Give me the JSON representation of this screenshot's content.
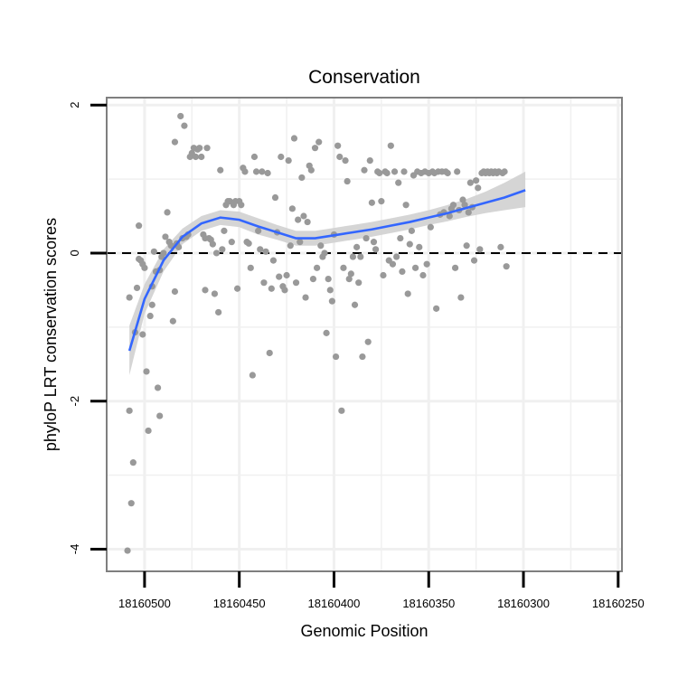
{
  "chart_data": {
    "type": "scatter",
    "title": "Conservation",
    "xlabel": "Genomic Position",
    "ylabel": "phyloP LRT conservation scores",
    "x_reversed": true,
    "xlim": [
      18160520,
      18160248
    ],
    "ylim": [
      -4.3,
      2.1
    ],
    "x_ticks": [
      18160500,
      18160450,
      18160400,
      18160350,
      18160300,
      18160250
    ],
    "x_tick_labels": [
      "18160500",
      "18160450",
      "18160400",
      "18160350",
      "18160300",
      "18160250"
    ],
    "y_ticks": [
      -4,
      -2,
      0,
      2
    ],
    "y_tick_labels": [
      "-4",
      "-2",
      "0",
      "2"
    ],
    "grid": true,
    "reference_line": {
      "y": 0,
      "style": "dashed"
    },
    "colors": {
      "points": "#999999",
      "smooth": "#3366ff",
      "band": "#d0d0d0",
      "frame": "#7f7f7f",
      "grid": "#f0f0f0"
    },
    "series": [
      {
        "name": "scores",
        "points": [
          [
            18160509,
            -4.02
          ],
          [
            18160507,
            -3.38
          ],
          [
            18160506,
            -2.83
          ],
          [
            18160508,
            -2.13
          ],
          [
            18160508,
            -0.6
          ],
          [
            18160505,
            -1.07
          ],
          [
            18160504,
            -0.47
          ],
          [
            18160503,
            0.37
          ],
          [
            18160503,
            -0.08
          ],
          [
            18160502,
            -0.1
          ],
          [
            18160501,
            -1.1
          ],
          [
            18160501,
            -0.15
          ],
          [
            18160500,
            -0.2
          ],
          [
            18160499,
            -1.6
          ],
          [
            18160498,
            -2.4
          ],
          [
            18160497,
            -0.85
          ],
          [
            18160496,
            -0.7
          ],
          [
            18160496,
            -0.45
          ],
          [
            18160495,
            0.02
          ],
          [
            18160494,
            -0.25
          ],
          [
            18160493,
            -1.82
          ],
          [
            18160492,
            -2.2
          ],
          [
            18160492,
            -0.23
          ],
          [
            18160491,
            -0.05
          ],
          [
            18160490,
            0.0
          ],
          [
            18160489,
            0.22
          ],
          [
            18160488,
            0.55
          ],
          [
            18160487,
            0.15
          ],
          [
            18160486,
            0.1
          ],
          [
            18160485,
            -0.92
          ],
          [
            18160484,
            -0.52
          ],
          [
            18160484,
            1.5
          ],
          [
            18160483,
            0.13
          ],
          [
            18160482,
            0.08
          ],
          [
            18160481,
            1.85
          ],
          [
            18160480,
            0.2
          ],
          [
            18160479,
            1.72
          ],
          [
            18160478,
            0.22
          ],
          [
            18160477,
            0.25
          ],
          [
            18160476,
            1.3
          ],
          [
            18160475,
            1.35
          ],
          [
            18160474,
            1.42
          ],
          [
            18160473,
            1.3
          ],
          [
            18160472,
            1.4
          ],
          [
            18160471,
            1.42
          ],
          [
            18160470,
            1.3
          ],
          [
            18160469,
            0.25
          ],
          [
            18160468,
            0.2
          ],
          [
            18160468,
            -0.5
          ],
          [
            18160467,
            1.42
          ],
          [
            18160466,
            0.2
          ],
          [
            18160465,
            0.18
          ],
          [
            18160464,
            0.12
          ],
          [
            18160463,
            -0.55
          ],
          [
            18160462,
            0.0
          ],
          [
            18160461,
            -0.8
          ],
          [
            18160460,
            1.12
          ],
          [
            18160459,
            0.05
          ],
          [
            18160458,
            0.3
          ],
          [
            18160457,
            0.65
          ],
          [
            18160456,
            0.7
          ],
          [
            18160455,
            0.7
          ],
          [
            18160454,
            0.15
          ],
          [
            18160453,
            0.65
          ],
          [
            18160452,
            0.7
          ],
          [
            18160451,
            -0.48
          ],
          [
            18160450,
            0.7
          ],
          [
            18160449,
            0.65
          ],
          [
            18160448,
            1.15
          ],
          [
            18160447,
            1.1
          ],
          [
            18160446,
            0.15
          ],
          [
            18160445,
            0.13
          ],
          [
            18160444,
            -0.2
          ],
          [
            18160443,
            -1.65
          ],
          [
            18160442,
            1.3
          ],
          [
            18160441,
            1.1
          ],
          [
            18160440,
            0.3
          ],
          [
            18160439,
            0.05
          ],
          [
            18160438,
            1.1
          ],
          [
            18160437,
            -0.4
          ],
          [
            18160436,
            0.02
          ],
          [
            18160435,
            1.08
          ],
          [
            18160434,
            -1.35
          ],
          [
            18160433,
            -0.48
          ],
          [
            18160432,
            -0.1
          ],
          [
            18160431,
            0.75
          ],
          [
            18160430,
            0.28
          ],
          [
            18160429,
            -0.32
          ],
          [
            18160428,
            1.3
          ],
          [
            18160427,
            -0.45
          ],
          [
            18160426,
            -0.5
          ],
          [
            18160425,
            -0.3
          ],
          [
            18160424,
            1.25
          ],
          [
            18160423,
            0.1
          ],
          [
            18160422,
            0.6
          ],
          [
            18160421,
            1.55
          ],
          [
            18160420,
            -0.4
          ],
          [
            18160419,
            0.45
          ],
          [
            18160418,
            0.15
          ],
          [
            18160417,
            1.02
          ],
          [
            18160416,
            0.5
          ],
          [
            18160415,
            -0.6
          ],
          [
            18160414,
            0.42
          ],
          [
            18160413,
            1.18
          ],
          [
            18160412,
            1.12
          ],
          [
            18160411,
            -0.35
          ],
          [
            18160410,
            1.42
          ],
          [
            18160409,
            -0.2
          ],
          [
            18160408,
            1.5
          ],
          [
            18160407,
            0.1
          ],
          [
            18160406,
            -0.05
          ],
          [
            18160405,
            0.0
          ],
          [
            18160404,
            -1.08
          ],
          [
            18160403,
            -0.35
          ],
          [
            18160402,
            -0.5
          ],
          [
            18160401,
            -0.65
          ],
          [
            18160400,
            0.25
          ],
          [
            18160399,
            -1.4
          ],
          [
            18160398,
            1.45
          ],
          [
            18160397,
            1.3
          ],
          [
            18160396,
            -2.13
          ],
          [
            18160395,
            -0.2
          ],
          [
            18160394,
            1.25
          ],
          [
            18160393,
            0.97
          ],
          [
            18160392,
            -0.35
          ],
          [
            18160391,
            -0.28
          ],
          [
            18160390,
            -0.05
          ],
          [
            18160389,
            -0.7
          ],
          [
            18160388,
            0.08
          ],
          [
            18160387,
            -0.4
          ],
          [
            18160386,
            -0.05
          ],
          [
            18160385,
            -1.4
          ],
          [
            18160384,
            1.12
          ],
          [
            18160383,
            0.2
          ],
          [
            18160382,
            -1.2
          ],
          [
            18160381,
            1.25
          ],
          [
            18160380,
            0.68
          ],
          [
            18160379,
            0.15
          ],
          [
            18160378,
            0.05
          ],
          [
            18160377,
            1.1
          ],
          [
            18160376,
            1.08
          ],
          [
            18160375,
            0.7
          ],
          [
            18160374,
            -0.3
          ],
          [
            18160373,
            1.1
          ],
          [
            18160372,
            1.08
          ],
          [
            18160371,
            -0.1
          ],
          [
            18160370,
            1.45
          ],
          [
            18160369,
            -0.15
          ],
          [
            18160368,
            1.1
          ],
          [
            18160367,
            -0.05
          ],
          [
            18160366,
            0.95
          ],
          [
            18160365,
            0.2
          ],
          [
            18160364,
            -0.25
          ],
          [
            18160363,
            1.1
          ],
          [
            18160362,
            0.65
          ],
          [
            18160361,
            -0.55
          ],
          [
            18160360,
            0.12
          ],
          [
            18160359,
            0.3
          ],
          [
            18160358,
            1.05
          ],
          [
            18160357,
            -0.2
          ],
          [
            18160356,
            1.1
          ],
          [
            18160355,
            0.08
          ],
          [
            18160354,
            1.08
          ],
          [
            18160353,
            -0.3
          ],
          [
            18160352,
            1.1
          ],
          [
            18160351,
            -0.15
          ],
          [
            18160350,
            1.08
          ],
          [
            18160349,
            0.35
          ],
          [
            18160348,
            1.1
          ],
          [
            18160347,
            1.08
          ],
          [
            18160346,
            -0.75
          ],
          [
            18160345,
            1.1
          ],
          [
            18160344,
            0.52
          ],
          [
            18160343,
            1.1
          ],
          [
            18160342,
            0.55
          ],
          [
            18160341,
            1.1
          ],
          [
            18160340,
            1.08
          ],
          [
            18160339,
            0.5
          ],
          [
            18160338,
            0.6
          ],
          [
            18160337,
            0.65
          ],
          [
            18160336,
            -0.2
          ],
          [
            18160335,
            1.1
          ],
          [
            18160334,
            0.58
          ],
          [
            18160333,
            -0.6
          ],
          [
            18160332,
            0.72
          ],
          [
            18160331,
            0.65
          ],
          [
            18160330,
            0.1
          ],
          [
            18160329,
            0.55
          ],
          [
            18160328,
            0.95
          ],
          [
            18160327,
            0.62
          ],
          [
            18160326,
            -0.1
          ],
          [
            18160325,
            0.98
          ],
          [
            18160324,
            0.88
          ],
          [
            18160323,
            0.05
          ],
          [
            18160322,
            1.08
          ],
          [
            18160321,
            1.1
          ],
          [
            18160320,
            1.08
          ],
          [
            18160319,
            1.1
          ],
          [
            18160318,
            1.08
          ],
          [
            18160317,
            1.1
          ],
          [
            18160316,
            1.08
          ],
          [
            18160315,
            1.1
          ],
          [
            18160314,
            1.08
          ],
          [
            18160313,
            1.1
          ],
          [
            18160312,
            0.08
          ],
          [
            18160311,
            1.08
          ],
          [
            18160310,
            1.1
          ],
          [
            18160309,
            -0.18
          ]
        ]
      }
    ],
    "smooth": [
      {
        "x": 18160508,
        "y": -1.32,
        "lo": -1.65,
        "hi": -0.98
      },
      {
        "x": 18160500,
        "y": -0.62,
        "lo": -0.82,
        "hi": -0.42
      },
      {
        "x": 18160490,
        "y": -0.1,
        "lo": -0.25,
        "hi": 0.05
      },
      {
        "x": 18160480,
        "y": 0.22,
        "lo": 0.12,
        "hi": 0.33
      },
      {
        "x": 18160470,
        "y": 0.4,
        "lo": 0.3,
        "hi": 0.5
      },
      {
        "x": 18160460,
        "y": 0.48,
        "lo": 0.38,
        "hi": 0.58
      },
      {
        "x": 18160450,
        "y": 0.45,
        "lo": 0.35,
        "hi": 0.56
      },
      {
        "x": 18160440,
        "y": 0.36,
        "lo": 0.25,
        "hi": 0.47
      },
      {
        "x": 18160430,
        "y": 0.28,
        "lo": 0.18,
        "hi": 0.38
      },
      {
        "x": 18160420,
        "y": 0.2,
        "lo": 0.1,
        "hi": 0.3
      },
      {
        "x": 18160410,
        "y": 0.2,
        "lo": 0.1,
        "hi": 0.3
      },
      {
        "x": 18160400,
        "y": 0.24,
        "lo": 0.14,
        "hi": 0.34
      },
      {
        "x": 18160390,
        "y": 0.28,
        "lo": 0.18,
        "hi": 0.38
      },
      {
        "x": 18160380,
        "y": 0.32,
        "lo": 0.22,
        "hi": 0.42
      },
      {
        "x": 18160370,
        "y": 0.37,
        "lo": 0.27,
        "hi": 0.47
      },
      {
        "x": 18160360,
        "y": 0.42,
        "lo": 0.32,
        "hi": 0.52
      },
      {
        "x": 18160350,
        "y": 0.48,
        "lo": 0.38,
        "hi": 0.58
      },
      {
        "x": 18160340,
        "y": 0.54,
        "lo": 0.43,
        "hi": 0.65
      },
      {
        "x": 18160330,
        "y": 0.61,
        "lo": 0.49,
        "hi": 0.73
      },
      {
        "x": 18160320,
        "y": 0.68,
        "lo": 0.54,
        "hi": 0.83
      },
      {
        "x": 18160310,
        "y": 0.75,
        "lo": 0.58,
        "hi": 0.95
      },
      {
        "x": 18160299,
        "y": 0.85,
        "lo": 0.62,
        "hi": 1.1
      }
    ]
  }
}
